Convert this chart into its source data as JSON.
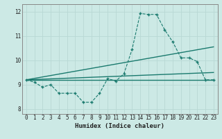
{
  "title": "",
  "xlabel": "Humidex (Indice chaleur)",
  "xlim": [
    -0.5,
    23.5
  ],
  "ylim": [
    7.8,
    12.3
  ],
  "yticks": [
    8,
    9,
    10,
    11,
    12
  ],
  "xticks": [
    0,
    1,
    2,
    3,
    4,
    5,
    6,
    7,
    8,
    9,
    10,
    11,
    12,
    13,
    14,
    15,
    16,
    17,
    18,
    19,
    20,
    21,
    22,
    23
  ],
  "bg_color": "#cce9e5",
  "line_color": "#1a7a6e",
  "grid_color": "#b8d8d4",
  "series1_x": [
    0,
    1,
    2,
    3,
    4,
    5,
    6,
    7,
    8,
    9,
    10,
    11,
    12,
    13,
    14,
    15,
    16,
    17,
    18,
    19,
    20,
    21,
    22,
    23
  ],
  "series1_y": [
    9.2,
    9.1,
    8.9,
    9.0,
    8.65,
    8.65,
    8.65,
    8.28,
    8.28,
    8.65,
    9.25,
    9.15,
    9.45,
    10.45,
    11.92,
    11.88,
    11.88,
    11.25,
    10.75,
    10.1,
    10.1,
    9.95,
    9.2,
    9.2
  ],
  "line1_x": [
    0,
    23
  ],
  "line1_y": [
    9.2,
    9.2
  ],
  "line2_x": [
    0,
    23
  ],
  "line2_y": [
    9.2,
    10.55
  ],
  "line3_x": [
    0,
    23
  ],
  "line3_y": [
    9.2,
    9.5
  ]
}
